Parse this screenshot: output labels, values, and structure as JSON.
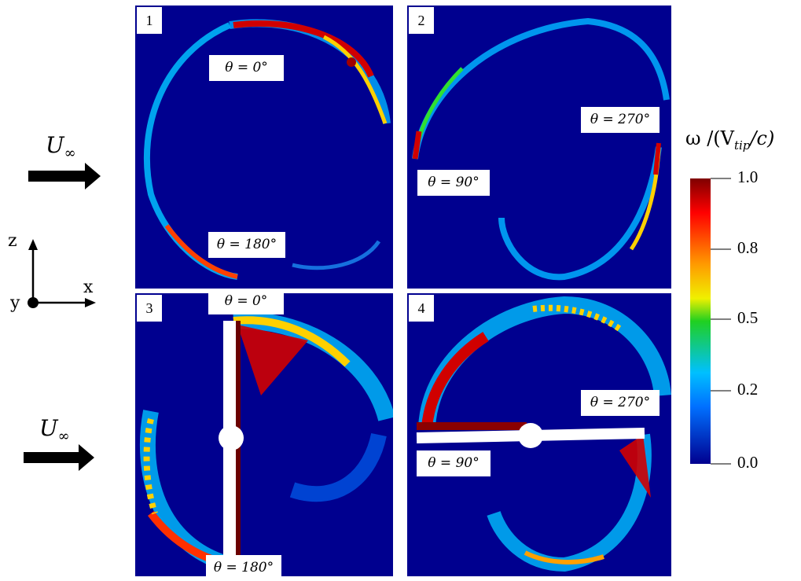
{
  "flow_label": {
    "main": "U",
    "sub": "∞"
  },
  "axes": {
    "z": "z",
    "x": "x",
    "y": "y"
  },
  "panels": [
    {
      "number": "1",
      "labels": [
        "θ = 0°",
        "θ = 180°"
      ]
    },
    {
      "number": "2",
      "labels": [
        "θ = 270°",
        "θ = 90°"
      ]
    },
    {
      "number": "3",
      "labels": [
        "θ = 0°",
        "θ = 180°"
      ]
    },
    {
      "number": "4",
      "labels": [
        "θ = 270°",
        "θ = 90°"
      ]
    }
  ],
  "colorbar": {
    "title": "ω /(V",
    "title_sub": "tip",
    "title_end": "/c)",
    "ticks": [
      "1.0",
      "0.8",
      "0.5",
      "0.2",
      "0.0"
    ],
    "colors": [
      "#7f0000",
      "#ff0000",
      "#ff9a00",
      "#f0f000",
      "#20d020",
      "#00c0ff",
      "#0070ff",
      "#00008f"
    ]
  }
}
